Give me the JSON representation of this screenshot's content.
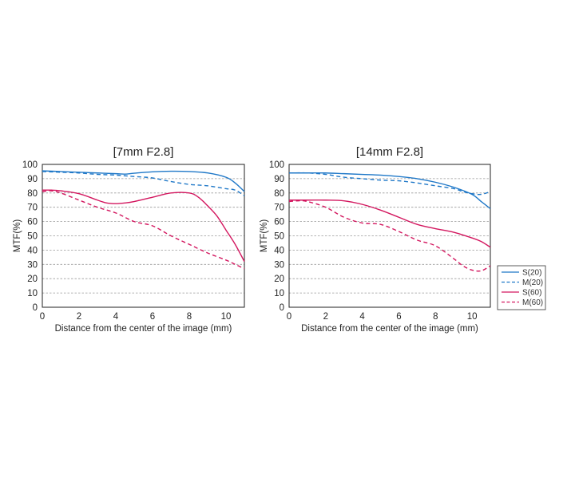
{
  "legend": {
    "items": [
      {
        "label": "S(20)",
        "color": "#1f78c8",
        "dash": "solid"
      },
      {
        "label": "M(20)",
        "color": "#1f78c8",
        "dash": "dashed"
      },
      {
        "label": "S(60)",
        "color": "#d3175f",
        "dash": "solid"
      },
      {
        "label": "M(60)",
        "color": "#d3175f",
        "dash": "dashed"
      }
    ]
  },
  "chart_data": [
    {
      "type": "line",
      "title": "[7mm F2.8]",
      "xlabel": "Distance from the center of the image (mm)",
      "ylabel": "MTF(%)",
      "xlim": [
        0,
        11
      ],
      "ylim": [
        0,
        100
      ],
      "xticks": [
        0,
        2,
        4,
        6,
        8,
        10
      ],
      "yticks": [
        0,
        10,
        20,
        30,
        40,
        50,
        60,
        70,
        80,
        90,
        100
      ],
      "grid": "horizontal dashed",
      "series": [
        {
          "name": "S(20)",
          "color": "#1f78c8",
          "dash": "solid",
          "x": [
            0,
            1,
            2,
            3,
            4,
            4.5,
            5,
            6,
            7,
            8,
            9,
            10,
            10.5,
            11
          ],
          "y": [
            95.5,
            95,
            94.5,
            94,
            93.5,
            93.2,
            93.8,
            94.8,
            95.2,
            95,
            94,
            91,
            87,
            81
          ]
        },
        {
          "name": "M(20)",
          "color": "#1f78c8",
          "dash": "dashed",
          "x": [
            0,
            1,
            2,
            3,
            4,
            5,
            6,
            7,
            8,
            9,
            10,
            10.5,
            11
          ],
          "y": [
            95,
            94.5,
            94,
            93,
            92.5,
            91.5,
            90.5,
            88,
            86,
            85,
            83,
            82,
            78
          ]
        },
        {
          "name": "S(60)",
          "color": "#d3175f",
          "dash": "solid",
          "x": [
            0,
            0.5,
            1,
            2,
            3,
            3.5,
            4,
            4.5,
            5,
            6,
            7,
            8,
            8.5,
            9,
            9.5,
            10,
            10.5,
            11
          ],
          "y": [
            82,
            82,
            81.5,
            79.5,
            75,
            73,
            72.5,
            73,
            74,
            77,
            80,
            80,
            77,
            71,
            64,
            54,
            44,
            32
          ]
        },
        {
          "name": "M(60)",
          "color": "#d3175f",
          "dash": "dashed",
          "x": [
            0,
            0.5,
            1,
            2,
            3,
            4,
            5,
            6,
            7,
            8,
            9,
            10,
            10.5,
            11
          ],
          "y": [
            81,
            81.5,
            80,
            75,
            70,
            66,
            60,
            57,
            50,
            44,
            38,
            33,
            30,
            27
          ]
        }
      ]
    },
    {
      "type": "line",
      "title": "[14mm F2.8]",
      "xlabel": "Distance from the center of the image (mm)",
      "ylabel": "MTF(%)",
      "xlim": [
        0,
        11
      ],
      "ylim": [
        0,
        100
      ],
      "xticks": [
        0,
        2,
        4,
        6,
        8,
        10
      ],
      "yticks": [
        0,
        10,
        20,
        30,
        40,
        50,
        60,
        70,
        80,
        90,
        100
      ],
      "grid": "horizontal dashed",
      "series": [
        {
          "name": "S(20)",
          "color": "#1f78c8",
          "dash": "solid",
          "x": [
            0,
            1,
            2,
            3,
            4,
            5,
            6,
            7,
            8,
            9,
            10,
            10.5,
            11
          ],
          "y": [
            94,
            94,
            94,
            93.5,
            93,
            92.5,
            91.5,
            90,
            87.5,
            84,
            79,
            74,
            69
          ]
        },
        {
          "name": "M(20)",
          "color": "#1f78c8",
          "dash": "dashed",
          "x": [
            0,
            1,
            2,
            3,
            4,
            5,
            6,
            7,
            8,
            9,
            9.5,
            10,
            10.5,
            11
          ],
          "y": [
            94,
            94,
            93,
            91,
            90,
            89,
            88.5,
            87,
            85,
            83,
            81,
            79.5,
            79,
            81
          ]
        },
        {
          "name": "S(60)",
          "color": "#d3175f",
          "dash": "solid",
          "x": [
            0,
            1,
            2,
            3,
            4,
            5,
            6,
            7,
            8,
            9,
            10,
            10.5,
            11
          ],
          "y": [
            75,
            75,
            75,
            74.5,
            72,
            68,
            63,
            58,
            55,
            52.5,
            48.5,
            46,
            42
          ]
        },
        {
          "name": "M(60)",
          "color": "#d3175f",
          "dash": "dashed",
          "x": [
            0,
            0.5,
            1,
            2,
            3,
            4,
            5,
            6,
            7,
            8,
            9,
            9.5,
            10,
            10.5,
            11
          ],
          "y": [
            74,
            74.5,
            74,
            70,
            63,
            59,
            58,
            53,
            47,
            43,
            34,
            29,
            26,
            25.5,
            29
          ]
        }
      ]
    }
  ]
}
